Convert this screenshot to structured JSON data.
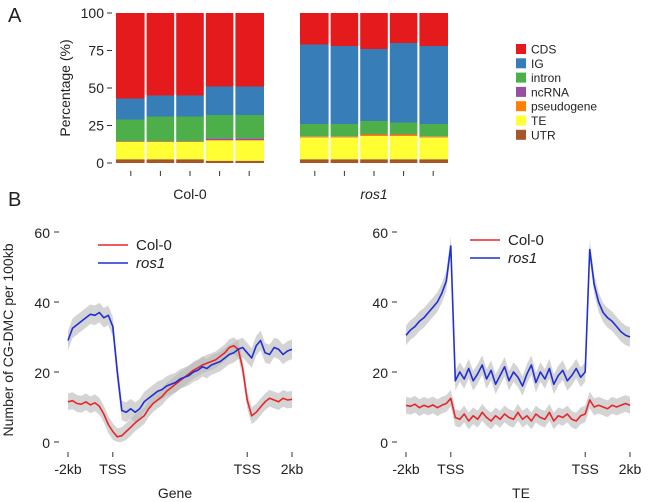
{
  "panels": {
    "a": "A",
    "b": "B"
  },
  "chart_data": [
    {
      "type": "bar",
      "stacked": true,
      "ylabel": "Percentage (%)",
      "ylim": [
        0,
        100
      ],
      "yticks": [
        "0",
        "25",
        "50",
        "75",
        "100"
      ],
      "groups": [
        {
          "name": "Col-0",
          "italic": false,
          "bars": 5,
          "series": [
            {
              "name": "UTR",
              "values": [
                2.5,
                2.5,
                2.5,
                1.5,
                1.5
              ]
            },
            {
              "name": "TE",
              "values": [
                11.5,
                11.5,
                11.5,
                13.5,
                13.5
              ]
            },
            {
              "name": "pseudogene",
              "values": [
                0.3,
                0.3,
                0.3,
                0.3,
                0.3
              ]
            },
            {
              "name": "ncRNA",
              "values": [
                0.3,
                0.3,
                0.3,
                1.2,
                1.2
              ]
            },
            {
              "name": "intron",
              "values": [
                14.4,
                16.4,
                16.4,
                15.5,
                15.5
              ]
            },
            {
              "name": "IG",
              "values": [
                14.0,
                14.0,
                14.0,
                19.0,
                19.0
              ]
            },
            {
              "name": "CDS",
              "values": [
                57.0,
                55.0,
                55.0,
                49.0,
                49.0
              ]
            }
          ]
        },
        {
          "name": "ros1",
          "italic": true,
          "bars": 5,
          "series": [
            {
              "name": "UTR",
              "values": [
                2.5,
                2.5,
                2.5,
                2.5,
                2.5
              ]
            },
            {
              "name": "TE",
              "values": [
                14.5,
                14.5,
                15.5,
                15.5,
                14.5
              ]
            },
            {
              "name": "pseudogene",
              "values": [
                0.5,
                0.5,
                1.0,
                1.0,
                0.5
              ]
            },
            {
              "name": "ncRNA",
              "values": [
                0.3,
                0.3,
                0.3,
                0.3,
                0.3
              ]
            },
            {
              "name": "intron",
              "values": [
                8.2,
                8.2,
                8.7,
                7.7,
                8.2
              ]
            },
            {
              "name": "IG",
              "values": [
                53.0,
                52.0,
                48.0,
                53.0,
                52.0
              ]
            },
            {
              "name": "CDS",
              "values": [
                21.0,
                22.0,
                24.0,
                20.0,
                22.0
              ]
            }
          ]
        }
      ],
      "legend": [
        {
          "name": "CDS",
          "color": "#e41a1c"
        },
        {
          "name": "IG",
          "color": "#377eb8"
        },
        {
          "name": "intron",
          "color": "#4daf4a"
        },
        {
          "name": "ncRNA",
          "color": "#984ea3"
        },
        {
          "name": "pseudogene",
          "color": "#ff7f00"
        },
        {
          "name": "TE",
          "color": "#ffff33"
        },
        {
          "name": "UTR",
          "color": "#a65628"
        }
      ]
    },
    {
      "type": "line",
      "ylabel": "Number of CG-DMC per 100kb",
      "xlabel": "Gene",
      "ylim": [
        0,
        60
      ],
      "yticks": [
        "0",
        "20",
        "40",
        "60"
      ],
      "xticks": [
        "-2kb",
        "TSS",
        "TSS",
        "2kb"
      ],
      "series": [
        {
          "name": "Col-0",
          "color": "#e8262a",
          "values": [
            11.5,
            11.8,
            11.0,
            10.8,
            11.5,
            10.6,
            11.2,
            10.2,
            8.0,
            5.0,
            3.0,
            1.5,
            1.8,
            3.0,
            4.2,
            5.5,
            6.5,
            7.5,
            9.5,
            11.0,
            12.0,
            13.0,
            14.5,
            15.5,
            16.5,
            17.5,
            18.5,
            19.5,
            20.5,
            21.2,
            22.0,
            22.5,
            23.0,
            23.5,
            24.5,
            25.5,
            27.0,
            27.5,
            26.5,
            21.0,
            12.0,
            7.5,
            8.5,
            10.0,
            11.5,
            12.5,
            12.0,
            11.5,
            12.5,
            12.0,
            12.2
          ]
        },
        {
          "name": "ros1",
          "color": "#1f2fd6",
          "values": [
            29.0,
            32.5,
            33.5,
            34.5,
            35.5,
            36.5,
            36.2,
            37.0,
            35.5,
            36.2,
            33.0,
            20.0,
            9.0,
            8.5,
            9.5,
            8.5,
            9.5,
            11.5,
            12.5,
            13.5,
            14.5,
            15.0,
            16.0,
            16.5,
            17.0,
            18.0,
            18.5,
            19.0,
            20.0,
            20.5,
            21.5,
            21.0,
            22.0,
            22.5,
            23.0,
            24.0,
            25.0,
            25.5,
            26.5,
            27.0,
            25.5,
            24.0,
            27.5,
            29.0,
            25.5,
            25.0,
            27.0,
            26.5,
            25.0,
            26.0,
            26.5
          ]
        }
      ]
    },
    {
      "type": "line",
      "xlabel": "TE",
      "ylim": [
        0,
        60
      ],
      "yticks": [
        "0",
        "20",
        "40",
        "60"
      ],
      "xticks": [
        "-2kb",
        "TSS",
        "TSS",
        "2kb"
      ],
      "series": [
        {
          "name": "Col-0",
          "color": "#e8262a",
          "values": [
            10.5,
            10.2,
            10.8,
            9.8,
            10.5,
            10.0,
            10.6,
            9.8,
            10.5,
            11.0,
            12.5,
            7.0,
            6.5,
            8.0,
            6.0,
            7.5,
            6.5,
            8.5,
            7.0,
            6.0,
            7.5,
            6.5,
            8.0,
            7.0,
            6.5,
            8.5,
            6.5,
            7.5,
            6.0,
            8.0,
            7.0,
            6.5,
            8.5,
            6.0,
            7.5,
            7.0,
            8.0,
            6.5,
            6.0,
            7.5,
            8.0,
            12.0,
            10.0,
            10.5,
            10.0,
            9.5,
            10.5,
            10.0,
            10.5,
            11.0,
            10.5
          ]
        },
        {
          "name": "ros1",
          "color": "#1f2fd6",
          "values": [
            30.5,
            32.0,
            33.0,
            34.5,
            35.5,
            37.0,
            38.5,
            40.0,
            42.5,
            46.0,
            56.0,
            17.5,
            20.0,
            18.0,
            21.0,
            17.5,
            19.5,
            22.0,
            18.0,
            20.5,
            16.5,
            19.0,
            21.5,
            17.5,
            20.0,
            18.5,
            16.0,
            19.5,
            22.0,
            17.0,
            20.0,
            18.0,
            21.0,
            16.5,
            19.0,
            20.5,
            17.5,
            19.0,
            21.0,
            18.5,
            20.0,
            55.0,
            45.0,
            40.0,
            37.0,
            35.5,
            34.5,
            33.0,
            31.5,
            30.5,
            30.0
          ]
        }
      ]
    }
  ]
}
